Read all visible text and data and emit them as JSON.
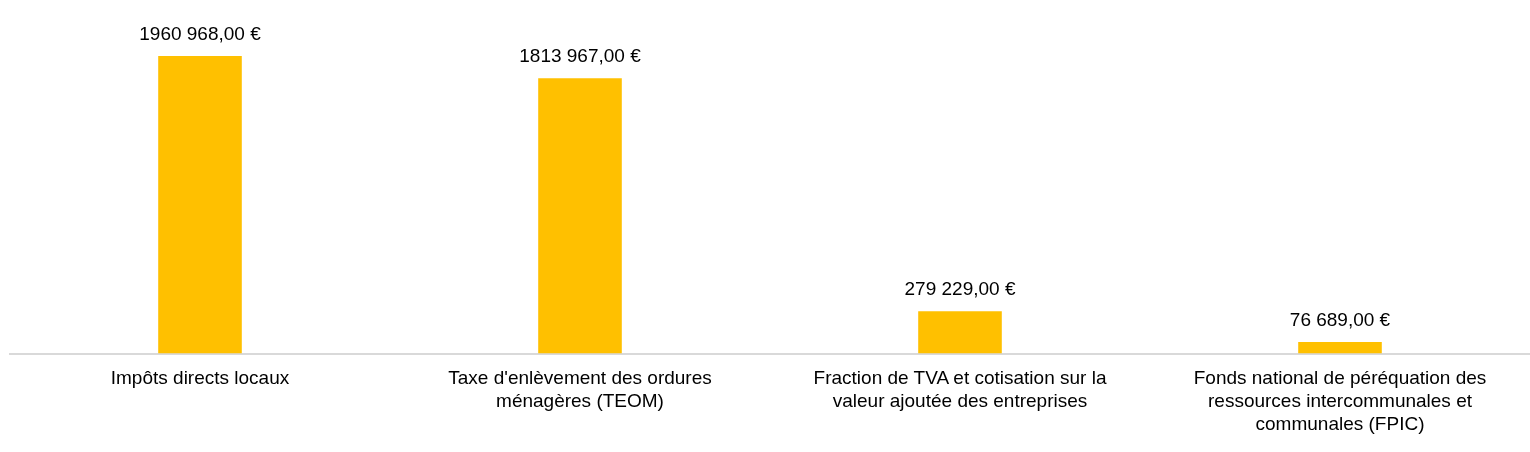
{
  "chart_data": {
    "type": "bar",
    "categories": [
      "Impôts directs locaux",
      "Taxe d'enlèvement des ordures ménagères (TEOM)",
      "Fraction de TVA et cotisation sur la valeur ajoutée des entreprises",
      "Fonds national de péréquation des ressources intercommunales et communales (FPIC)"
    ],
    "values": [
      1960968,
      1813967,
      279229,
      76689
    ],
    "value_labels": [
      "1960 968,00 €",
      "1813 967,00 €",
      "279 229,00 €",
      "76 689,00 €"
    ],
    "color": "#ffc000",
    "grid": false,
    "legend": false,
    "tick_labels": "x"
  }
}
